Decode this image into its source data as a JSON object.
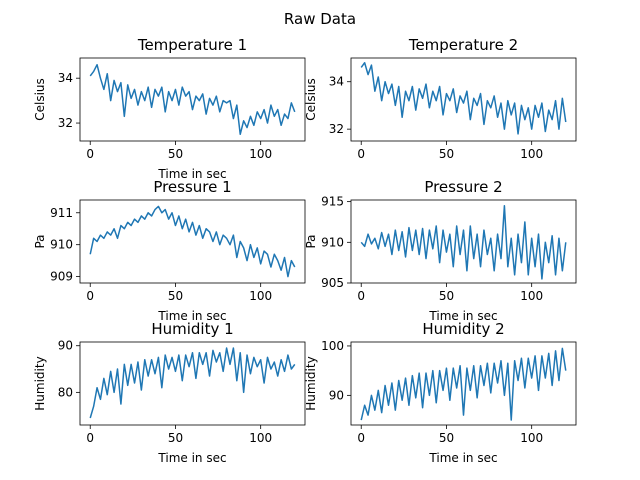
{
  "figure": {
    "title": "Raw Data"
  },
  "chart_data": [
    {
      "type": "line",
      "title": "Temperature 1",
      "xlabel": "Time in sec",
      "ylabel": "Celsius",
      "xlim": [
        -6,
        126
      ],
      "ylim": [
        31.2,
        34.9
      ],
      "xticks": [
        0,
        50,
        100
      ],
      "yticks": [
        32,
        34
      ],
      "series": [
        {
          "color": "#1f77b4",
          "x": [
            0,
            2,
            4,
            6,
            8,
            10,
            12,
            14,
            16,
            18,
            20,
            22,
            24,
            26,
            28,
            30,
            32,
            34,
            36,
            38,
            40,
            42,
            44,
            46,
            48,
            50,
            52,
            54,
            56,
            58,
            60,
            62,
            64,
            66,
            68,
            70,
            72,
            74,
            76,
            78,
            80,
            82,
            84,
            86,
            88,
            90,
            92,
            94,
            96,
            98,
            100,
            102,
            104,
            106,
            108,
            110,
            112,
            114,
            116,
            118,
            120
          ],
          "y": [
            34.1,
            34.3,
            34.6,
            34.0,
            33.5,
            34.2,
            33.0,
            33.9,
            33.4,
            33.8,
            32.3,
            33.7,
            33.1,
            33.5,
            32.8,
            33.4,
            33.0,
            33.6,
            32.7,
            33.5,
            33.2,
            33.6,
            32.5,
            33.4,
            33.0,
            33.5,
            32.8,
            33.6,
            33.2,
            33.4,
            32.6,
            33.2,
            33.0,
            33.3,
            32.4,
            33.1,
            32.8,
            33.2,
            32.5,
            33.0,
            32.9,
            33.0,
            32.2,
            32.8,
            31.5,
            32.1,
            31.8,
            32.3,
            31.9,
            32.5,
            32.2,
            32.6,
            32.0,
            32.8,
            32.3,
            32.6,
            31.9,
            32.4,
            32.2,
            32.9,
            32.5
          ]
        }
      ]
    },
    {
      "type": "line",
      "title": "Temperature 2",
      "xlabel": "",
      "ylabel": "Celsius",
      "xlim": [
        -6,
        126
      ],
      "ylim": [
        31.5,
        35.0
      ],
      "xticks": [
        0,
        50,
        100
      ],
      "yticks": [
        32,
        34
      ],
      "series": [
        {
          "color": "#1f77b4",
          "x": [
            0,
            2,
            4,
            6,
            8,
            10,
            12,
            14,
            16,
            18,
            20,
            22,
            24,
            26,
            28,
            30,
            32,
            34,
            36,
            38,
            40,
            42,
            44,
            46,
            48,
            50,
            52,
            54,
            56,
            58,
            60,
            62,
            64,
            66,
            68,
            70,
            72,
            74,
            76,
            78,
            80,
            82,
            84,
            86,
            88,
            90,
            92,
            94,
            96,
            98,
            100,
            102,
            104,
            106,
            108,
            110,
            112,
            114,
            116,
            118,
            120
          ],
          "y": [
            34.6,
            34.8,
            34.3,
            34.7,
            33.6,
            34.2,
            33.2,
            34.0,
            33.5,
            33.9,
            33.0,
            33.8,
            32.5,
            33.6,
            33.2,
            33.8,
            32.8,
            33.7,
            33.3,
            33.9,
            32.9,
            33.6,
            33.2,
            33.8,
            32.6,
            33.5,
            33.2,
            33.7,
            32.7,
            33.4,
            33.1,
            33.6,
            32.4,
            33.3,
            33.0,
            33.5,
            32.2,
            33.2,
            32.9,
            33.4,
            32.5,
            33.1,
            32.0,
            33.2,
            32.6,
            33.1,
            31.8,
            33.0,
            32.4,
            32.9,
            32.0,
            33.0,
            32.5,
            33.1,
            31.9,
            32.8,
            32.4,
            33.2,
            32.0,
            33.3,
            32.3
          ]
        }
      ]
    },
    {
      "type": "line",
      "title": "Pressure 1",
      "xlabel": "Time in sec",
      "ylabel": "Pa",
      "xlim": [
        -6,
        126
      ],
      "ylim": [
        908.8,
        911.4
      ],
      "xticks": [
        0,
        50,
        100
      ],
      "yticks": [
        909,
        910,
        911
      ],
      "series": [
        {
          "color": "#1f77b4",
          "x": [
            0,
            2,
            4,
            6,
            8,
            10,
            12,
            14,
            16,
            18,
            20,
            22,
            24,
            26,
            28,
            30,
            32,
            34,
            36,
            38,
            40,
            42,
            44,
            46,
            48,
            50,
            52,
            54,
            56,
            58,
            60,
            62,
            64,
            66,
            68,
            70,
            72,
            74,
            76,
            78,
            80,
            82,
            84,
            86,
            88,
            90,
            92,
            94,
            96,
            98,
            100,
            102,
            104,
            106,
            108,
            110,
            112,
            114,
            116,
            118,
            120
          ],
          "y": [
            909.7,
            910.2,
            910.1,
            910.3,
            910.2,
            910.4,
            910.3,
            910.5,
            910.2,
            910.6,
            910.5,
            910.7,
            910.6,
            910.8,
            910.7,
            910.9,
            910.8,
            911.0,
            910.9,
            911.1,
            911.2,
            911.0,
            911.1,
            910.8,
            911.0,
            910.6,
            910.9,
            910.5,
            910.8,
            910.4,
            910.7,
            910.3,
            910.6,
            910.2,
            910.5,
            910.4,
            910.1,
            910.4,
            910.0,
            910.3,
            910.2,
            910.0,
            910.3,
            909.6,
            910.1,
            909.9,
            909.5,
            910.0,
            909.6,
            909.9,
            909.4,
            909.8,
            909.7,
            909.3,
            909.7,
            909.5,
            909.2,
            909.6,
            909.0,
            909.5,
            909.3
          ]
        }
      ]
    },
    {
      "type": "line",
      "title": "Pressure 2",
      "xlabel": "Time in sec",
      "ylabel": "Pa",
      "xlim": [
        -6,
        126
      ],
      "ylim": [
        905.0,
        915.2
      ],
      "xticks": [
        0,
        50,
        100
      ],
      "yticks": [
        905,
        910,
        915
      ],
      "series": [
        {
          "color": "#1f77b4",
          "x": [
            0,
            2,
            4,
            6,
            8,
            10,
            12,
            14,
            16,
            18,
            20,
            22,
            24,
            26,
            28,
            30,
            32,
            34,
            36,
            38,
            40,
            42,
            44,
            46,
            48,
            50,
            52,
            54,
            56,
            58,
            60,
            62,
            64,
            66,
            68,
            70,
            72,
            74,
            76,
            78,
            80,
            82,
            84,
            86,
            88,
            90,
            92,
            94,
            96,
            98,
            100,
            102,
            104,
            106,
            108,
            110,
            112,
            114,
            116,
            118,
            120
          ],
          "y": [
            910.0,
            909.5,
            911.0,
            909.8,
            910.5,
            909.2,
            911.2,
            909.5,
            911.0,
            908.5,
            911.5,
            909.0,
            911.3,
            908.2,
            911.8,
            909.0,
            911.5,
            908.5,
            911.7,
            908.0,
            911.5,
            909.2,
            912.0,
            907.5,
            911.5,
            908.8,
            911.0,
            907.0,
            912.0,
            908.5,
            911.5,
            906.5,
            912.0,
            908.0,
            911.0,
            907.0,
            911.5,
            908.5,
            910.5,
            906.5,
            911.0,
            908.0,
            914.5,
            907.0,
            910.5,
            906.0,
            911.0,
            907.5,
            912.5,
            906.0,
            910.5,
            907.0,
            911.0,
            905.5,
            910.0,
            907.5,
            910.8,
            906.0,
            910.5,
            906.5,
            910.0
          ]
        }
      ]
    },
    {
      "type": "line",
      "title": "Humidity 1",
      "xlabel": "Time in sec",
      "ylabel": "Humidity",
      "xlim": [
        -6,
        126
      ],
      "ylim": [
        73.0,
        90.8
      ],
      "xticks": [
        0,
        50,
        100
      ],
      "yticks": [
        80,
        90
      ],
      "series": [
        {
          "color": "#1f77b4",
          "x": [
            0,
            2,
            4,
            6,
            8,
            10,
            12,
            14,
            16,
            18,
            20,
            22,
            24,
            26,
            28,
            30,
            32,
            34,
            36,
            38,
            40,
            42,
            44,
            46,
            48,
            50,
            52,
            54,
            56,
            58,
            60,
            62,
            64,
            66,
            68,
            70,
            72,
            74,
            76,
            78,
            80,
            82,
            84,
            86,
            88,
            90,
            92,
            94,
            96,
            98,
            100,
            102,
            104,
            106,
            108,
            110,
            112,
            114,
            116,
            118,
            120
          ],
          "y": [
            74.5,
            77.0,
            81.0,
            78.5,
            83.0,
            79.5,
            84.5,
            80.0,
            85.0,
            77.5,
            86.0,
            81.5,
            86.0,
            82.0,
            86.5,
            80.5,
            87.0,
            83.5,
            87.0,
            84.0,
            87.5,
            81.0,
            88.0,
            85.0,
            87.5,
            84.5,
            88.0,
            82.5,
            88.0,
            85.5,
            88.5,
            83.0,
            88.5,
            86.0,
            88.5,
            83.5,
            89.0,
            86.5,
            88.5,
            84.5,
            89.5,
            86.0,
            89.5,
            82.5,
            88.5,
            80.0,
            88.0,
            84.0,
            87.5,
            85.5,
            87.0,
            82.0,
            87.5,
            85.0,
            86.5,
            83.5,
            87.0,
            84.5,
            88.0,
            85.0,
            86.0
          ]
        }
      ]
    },
    {
      "type": "line",
      "title": "Humidity 2",
      "xlabel": "Time in sec",
      "ylabel": "Humidity",
      "xlim": [
        -6,
        126
      ],
      "ylim": [
        84.0,
        100.8
      ],
      "xticks": [
        0,
        50,
        100
      ],
      "yticks": [
        90,
        100
      ],
      "series": [
        {
          "color": "#1f77b4",
          "x": [
            0,
            2,
            4,
            6,
            8,
            10,
            12,
            14,
            16,
            18,
            20,
            22,
            24,
            26,
            28,
            30,
            32,
            34,
            36,
            38,
            40,
            42,
            44,
            46,
            48,
            50,
            52,
            54,
            56,
            58,
            60,
            62,
            64,
            66,
            68,
            70,
            72,
            74,
            76,
            78,
            80,
            82,
            84,
            86,
            88,
            90,
            92,
            94,
            96,
            98,
            100,
            102,
            104,
            106,
            108,
            110,
            112,
            114,
            116,
            118,
            120
          ],
          "y": [
            85.0,
            88.0,
            86.0,
            90.0,
            87.0,
            91.0,
            86.5,
            92.0,
            88.0,
            92.5,
            87.0,
            93.0,
            89.0,
            93.5,
            88.0,
            94.0,
            89.5,
            94.5,
            87.5,
            94.5,
            90.0,
            95.0,
            88.5,
            95.0,
            91.0,
            95.5,
            89.0,
            95.5,
            91.5,
            96.0,
            86.0,
            95.5,
            91.0,
            96.0,
            89.5,
            96.0,
            92.0,
            96.5,
            90.5,
            96.5,
            92.5,
            97.0,
            90.0,
            96.5,
            85.0,
            97.0,
            93.0,
            97.5,
            91.5,
            97.5,
            93.5,
            98.0,
            91.0,
            98.0,
            93.5,
            98.5,
            92.0,
            99.0,
            93.0,
            99.5,
            95.0
          ]
        }
      ]
    }
  ]
}
